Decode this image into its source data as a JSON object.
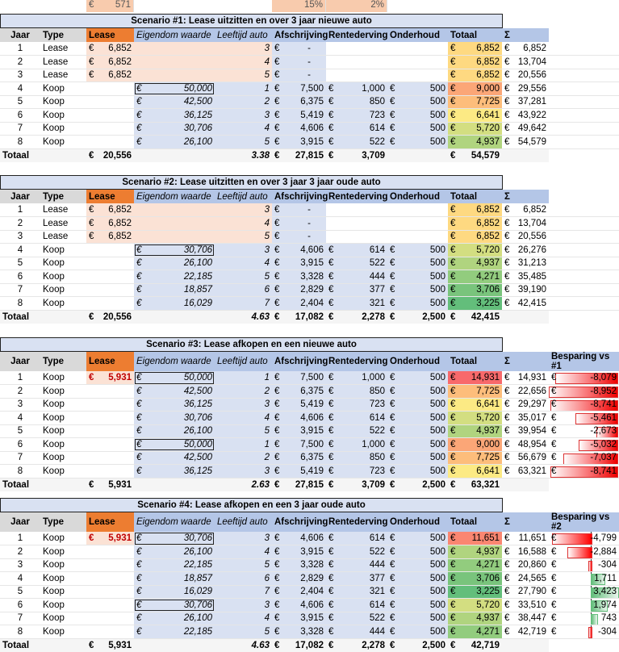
{
  "top": {
    "lease": "571",
    "afschrijving_pct": "15%",
    "rente_pct": "2%"
  },
  "headers": [
    "Jaar",
    "Type",
    "Lease",
    "Eigendom waarde",
    "Leeftijd auto",
    "Afschrijving",
    "Rentederving",
    "Onderhoud",
    "Totaal",
    "Σ"
  ],
  "currency": "€",
  "total_label": "Totaal",
  "colors": {
    "lease_header": "#ed7d31",
    "header": "#b4c6e7",
    "lease_fill": "#fbe2d5",
    "koop_fill": "#d9e1f2",
    "heat_low": "#63be7b",
    "heat_mid": "#ffeb84",
    "heat_high": "#f8696b"
  },
  "scenarios": [
    {
      "title": "Scenario #1: Lease uitzitten en over 3 jaar nieuwe auto",
      "extra_header": "",
      "rows": [
        [
          "1",
          "Lease",
          "6,852",
          "",
          "3",
          "-",
          "",
          "",
          "6,852",
          "6,852",
          ""
        ],
        [
          "2",
          "Lease",
          "6,852",
          "",
          "4",
          "-",
          "",
          "",
          "6,852",
          "13,704",
          ""
        ],
        [
          "3",
          "Lease",
          "6,852",
          "",
          "5",
          "-",
          "",
          "",
          "6,852",
          "20,556",
          ""
        ],
        [
          "4",
          "Koop",
          "",
          "50,000",
          "1",
          "7,500",
          "1,000",
          "500",
          "9,000",
          "29,556",
          ""
        ],
        [
          "5",
          "Koop",
          "",
          "42,500",
          "2",
          "6,375",
          "850",
          "500",
          "7,725",
          "37,281",
          ""
        ],
        [
          "6",
          "Koop",
          "",
          "36,125",
          "3",
          "5,419",
          "723",
          "500",
          "6,641",
          "43,922",
          ""
        ],
        [
          "7",
          "Koop",
          "",
          "30,706",
          "4",
          "4,606",
          "614",
          "500",
          "5,720",
          "49,642",
          ""
        ],
        [
          "8",
          "Koop",
          "",
          "26,100",
          "5",
          "3,915",
          "522",
          "500",
          "4,937",
          "54,579",
          ""
        ]
      ],
      "total": {
        "lease": "20,556",
        "leeftijd": "3.38",
        "afschrijving": "27,815",
        "rentederving": "3,709",
        "onderhoud": "",
        "totaal": "54,579"
      }
    },
    {
      "title": "Scenario #2: Lease uitzitten en over 3 jaar 3 jaar oude auto",
      "extra_header": "",
      "rows": [
        [
          "1",
          "Lease",
          "6,852",
          "",
          "3",
          "-",
          "",
          "",
          "6,852",
          "6,852",
          ""
        ],
        [
          "2",
          "Lease",
          "6,852",
          "",
          "4",
          "-",
          "",
          "",
          "6,852",
          "13,704",
          ""
        ],
        [
          "3",
          "Lease",
          "6,852",
          "",
          "5",
          "-",
          "",
          "",
          "6,852",
          "20,556",
          ""
        ],
        [
          "4",
          "Koop",
          "",
          "30,706",
          "3",
          "4,606",
          "614",
          "500",
          "5,720",
          "26,276",
          ""
        ],
        [
          "5",
          "Koop",
          "",
          "26,100",
          "4",
          "3,915",
          "522",
          "500",
          "4,937",
          "31,213",
          ""
        ],
        [
          "6",
          "Koop",
          "",
          "22,185",
          "5",
          "3,328",
          "444",
          "500",
          "4,271",
          "35,485",
          ""
        ],
        [
          "7",
          "Koop",
          "",
          "18,857",
          "6",
          "2,829",
          "377",
          "500",
          "3,706",
          "39,190",
          ""
        ],
        [
          "8",
          "Koop",
          "",
          "16,029",
          "7",
          "2,404",
          "321",
          "500",
          "3,225",
          "42,415",
          ""
        ]
      ],
      "total": {
        "lease": "20,556",
        "leeftijd": "4.63",
        "afschrijving": "17,082",
        "rentederving": "2,278",
        "onderhoud": "2,500",
        "totaal": "42,415"
      }
    },
    {
      "title": "Scenario #3: Lease afkopen en een nieuwe auto",
      "extra_header": "Besparing vs #1",
      "rows": [
        [
          "1",
          "Koop",
          "5,931",
          "50,000",
          "1",
          "7,500",
          "1,000",
          "500",
          "14,931",
          "14,931",
          "-8,079"
        ],
        [
          "2",
          "Koop",
          "",
          "42,500",
          "2",
          "6,375",
          "850",
          "500",
          "7,725",
          "22,656",
          "-8,952"
        ],
        [
          "3",
          "Koop",
          "",
          "36,125",
          "3",
          "5,419",
          "723",
          "500",
          "6,641",
          "29,297",
          "-8,741"
        ],
        [
          "4",
          "Koop",
          "",
          "30,706",
          "4",
          "4,606",
          "614",
          "500",
          "5,720",
          "35,017",
          "-5,461"
        ],
        [
          "5",
          "Koop",
          "",
          "26,100",
          "5",
          "3,915",
          "522",
          "500",
          "4,937",
          "39,954",
          "-2,673"
        ],
        [
          "6",
          "Koop",
          "",
          "50,000",
          "1",
          "7,500",
          "1,000",
          "500",
          "9,000",
          "48,954",
          "-5,032"
        ],
        [
          "7",
          "Koop",
          "",
          "42,500",
          "2",
          "6,375",
          "850",
          "500",
          "7,725",
          "56,679",
          "-7,037"
        ],
        [
          "8",
          "Koop",
          "",
          "36,125",
          "3",
          "5,419",
          "723",
          "500",
          "6,641",
          "63,321",
          "-8,741"
        ]
      ],
      "total": {
        "lease": "5,931",
        "leeftijd": "2.63",
        "afschrijving": "27,815",
        "rentederving": "3,709",
        "onderhoud": "2,500",
        "totaal": "63,321"
      }
    },
    {
      "title": "Scenario #4: Lease afkopen en een 3 jaar oude auto",
      "extra_header": "Besparing vs #2",
      "rows": [
        [
          "1",
          "Koop",
          "5,931",
          "30,706",
          "3",
          "4,606",
          "614",
          "500",
          "11,651",
          "11,651",
          "-4,799"
        ],
        [
          "2",
          "Koop",
          "",
          "26,100",
          "4",
          "3,915",
          "522",
          "500",
          "4,937",
          "16,588",
          "-2,884"
        ],
        [
          "3",
          "Koop",
          "",
          "22,185",
          "5",
          "3,328",
          "444",
          "500",
          "4,271",
          "20,860",
          "-304"
        ],
        [
          "4",
          "Koop",
          "",
          "18,857",
          "6",
          "2,829",
          "377",
          "500",
          "3,706",
          "24,565",
          "1,711"
        ],
        [
          "5",
          "Koop",
          "",
          "16,029",
          "7",
          "2,404",
          "321",
          "500",
          "3,225",
          "27,790",
          "3,423"
        ],
        [
          "6",
          "Koop",
          "",
          "30,706",
          "3",
          "4,606",
          "614",
          "500",
          "5,720",
          "33,510",
          "1,974"
        ],
        [
          "7",
          "Koop",
          "",
          "26,100",
          "4",
          "3,915",
          "522",
          "500",
          "4,937",
          "38,447",
          "743"
        ],
        [
          "8",
          "Koop",
          "",
          "22,185",
          "5",
          "3,328",
          "444",
          "500",
          "4,271",
          "42,719",
          "-304"
        ]
      ],
      "total": {
        "lease": "5,931",
        "leeftijd": "4.63",
        "afschrijving": "17,082",
        "rentederving": "2,278",
        "onderhoud": "2,500",
        "totaal": "42,719"
      }
    }
  ]
}
